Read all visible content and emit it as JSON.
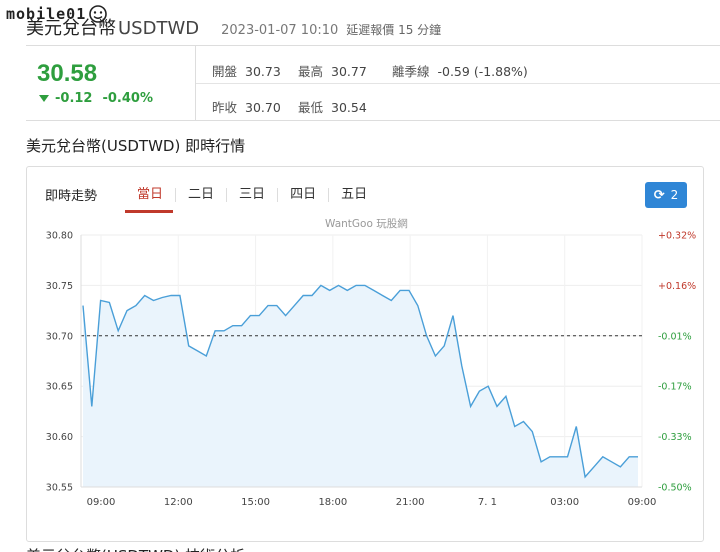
{
  "brand": {
    "logo_text": "mobile01"
  },
  "header": {
    "name": "美元兌台幣",
    "symbol": "USDTWD",
    "datetime": "2023-01-07 10:10",
    "delay_note": "延遲報價 15 分鐘"
  },
  "quote": {
    "price": "30.58",
    "change": "-0.12",
    "change_pct": "-0.40%",
    "direction_color": "#2e9e3e",
    "stats": {
      "open_label": "開盤",
      "open": "30.73",
      "high_label": "最高",
      "high": "30.77",
      "pre_label": "離季線",
      "pre": "-0.59 (-1.88%)",
      "prev_label": "昨收",
      "prev": "30.70",
      "low_label": "最低",
      "low": "30.54"
    }
  },
  "section_title": "美元兌台幣(USDTWD) 即時行情",
  "chart_panel": {
    "heading": "即時走勢",
    "tabs": [
      "當日",
      "二日",
      "三日",
      "四日",
      "五日"
    ],
    "active_tab": "當日",
    "refresh_label": "2",
    "watermark": "WantGoo 玩股網"
  },
  "chart_data": {
    "type": "area",
    "title": "",
    "xlabel": "",
    "ylabel": "",
    "ylim": [
      30.55,
      30.8
    ],
    "y_ticks": [
      "30.80",
      "30.75",
      "30.70",
      "30.65",
      "30.60",
      "30.55"
    ],
    "y2_ticks": [
      "+0.32%",
      "+0.16%",
      "-0.01%",
      "-0.17%",
      "-0.33%",
      "-0.50%"
    ],
    "x_ticks": [
      "09:00",
      "12:00",
      "15:00",
      "18:00",
      "21:00",
      "7. 1",
      "03:00",
      "09:00"
    ],
    "reference_line": 30.7,
    "line_color": "#4a9fd8",
    "fill_color": "#eaf4fc",
    "positive_color": "#c0392b",
    "negative_color": "#2e9e3e",
    "x": [
      "08:45",
      "08:48",
      "08:51",
      "09:00",
      "09:15",
      "09:30",
      "09:45",
      "10:00",
      "10:15",
      "10:30",
      "10:45",
      "11:00",
      "11:10",
      "11:20",
      "11:30",
      "11:45",
      "12:00",
      "12:15",
      "12:30",
      "13:00",
      "13:30",
      "14:00",
      "14:30",
      "15:00",
      "15:15",
      "15:30",
      "16:00",
      "16:30",
      "17:00",
      "17:30",
      "18:00",
      "18:20",
      "18:40",
      "19:00",
      "19:30",
      "20:00",
      "20:30",
      "21:00",
      "21:15",
      "21:30",
      "21:45",
      "22:00",
      "22:30",
      "23:00",
      "23:30",
      "00:00",
      "00:30",
      "01:00",
      "01:30",
      "02:00",
      "02:30",
      "03:00",
      "03:30",
      "04:00",
      "04:30",
      "05:00",
      "05:30",
      "06:00",
      "06:30",
      "07:00",
      "07:30",
      "08:00",
      "08:30",
      "09:00"
    ],
    "values": [
      30.73,
      30.63,
      30.735,
      30.733,
      30.705,
      30.725,
      30.73,
      30.74,
      30.735,
      30.738,
      30.74,
      30.74,
      30.69,
      30.685,
      30.68,
      30.705,
      30.705,
      30.71,
      30.71,
      30.72,
      30.72,
      30.73,
      30.73,
      30.72,
      30.73,
      30.74,
      30.74,
      30.75,
      30.745,
      30.75,
      30.745,
      30.75,
      30.75,
      30.745,
      30.74,
      30.735,
      30.745,
      30.745,
      30.73,
      30.7,
      30.68,
      30.69,
      30.72,
      30.67,
      30.63,
      30.645,
      30.65,
      30.63,
      30.64,
      30.61,
      30.615,
      30.605,
      30.575,
      30.58,
      30.58,
      30.58,
      30.61,
      30.56,
      30.57,
      30.58,
      30.575,
      30.57,
      30.58,
      30.58
    ]
  },
  "bottom_section_title": "美元兌台幣(USDTWD) 技術分析"
}
